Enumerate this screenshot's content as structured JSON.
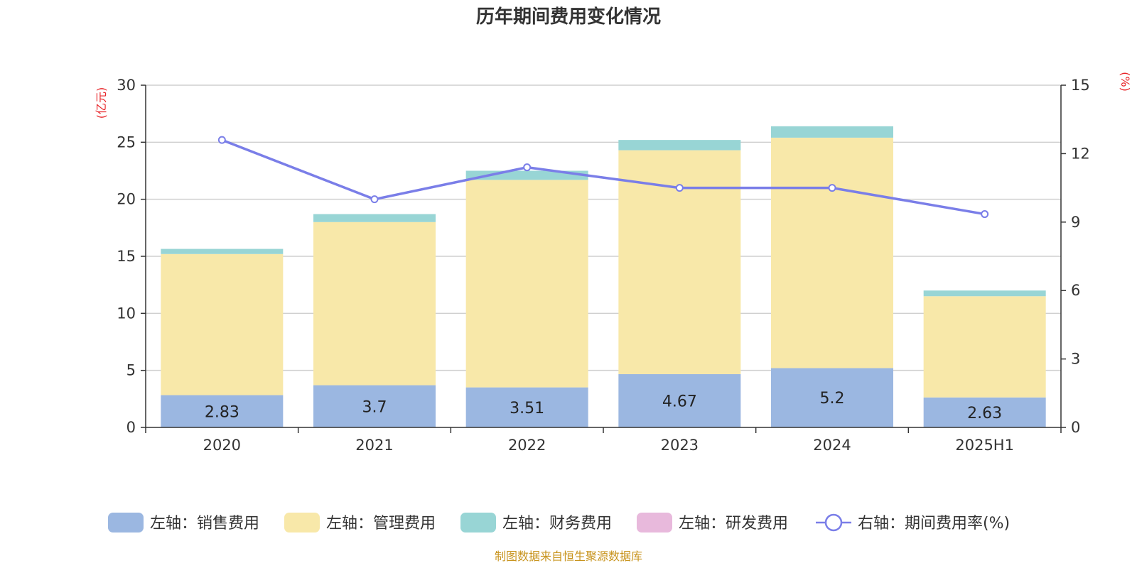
{
  "chart_data": {
    "type": "bar",
    "title": "历年期间费用变化情况",
    "categories": [
      "2020",
      "2021",
      "2022",
      "2023",
      "2024",
      "2025H1"
    ],
    "left_axis": {
      "unit": "(亿元)",
      "ylim": [
        0,
        30
      ],
      "ticks": [
        "0",
        "5",
        "10",
        "15",
        "20",
        "25",
        "30"
      ]
    },
    "right_axis": {
      "unit": "(%)",
      "ylim": [
        0,
        15
      ],
      "ticks": [
        "0",
        "3",
        "6",
        "9",
        "12",
        "15"
      ]
    },
    "series": [
      {
        "name": "左轴：销售费用",
        "axis": "left",
        "stack": "total",
        "color": "#9bb7e1",
        "values": [
          2.83,
          3.7,
          3.51,
          4.67,
          5.2,
          2.63
        ],
        "labels": [
          "2.83",
          "3.7",
          "3.51",
          "4.67",
          "5.2",
          "2.63"
        ]
      },
      {
        "name": "左轴：管理费用",
        "axis": "left",
        "stack": "total",
        "color": "#f8e8a9",
        "values": [
          12.37,
          14.3,
          18.19,
          19.63,
          20.2,
          8.87
        ]
      },
      {
        "name": "左轴：财务费用",
        "axis": "left",
        "stack": "total",
        "color": "#98d5d5",
        "values": [
          0.45,
          0.7,
          0.8,
          0.9,
          1.0,
          0.5
        ]
      },
      {
        "name": "左轴：研发费用",
        "axis": "left",
        "stack": "total",
        "color": "#e8b9dc",
        "values": [
          0,
          0,
          0,
          0,
          0,
          0
        ]
      },
      {
        "name": "右轴：期间费用率(%)",
        "axis": "right",
        "type": "line",
        "color": "#7a7ee8",
        "values": [
          12.6,
          10.0,
          11.4,
          10.5,
          10.5,
          9.35
        ]
      }
    ],
    "grid": true,
    "legend_position": "bottom"
  },
  "source": "制图数据来自恒生聚源数据库"
}
